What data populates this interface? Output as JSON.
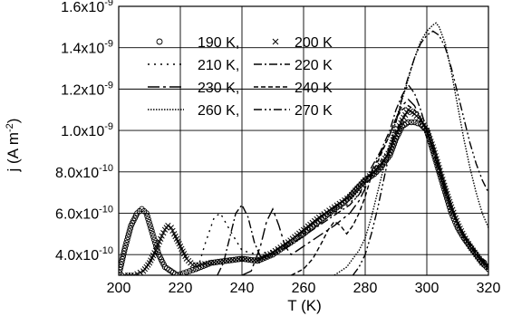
{
  "chart_data": {
    "type": "line",
    "xlabel": "T (K)",
    "ylabel": "j (A m",
    "ylabel_exponent": "-2",
    "ylabel_close": ")",
    "xlim": [
      200,
      320
    ],
    "ylim": [
      3e-10,
      1.6e-09
    ],
    "grid": true,
    "legend_placement": "top-left",
    "x_ticks": [
      200,
      220,
      240,
      260,
      280,
      300,
      320
    ],
    "x_tick_labels": [
      "200",
      "220",
      "240",
      "260",
      "280",
      "300",
      "320"
    ],
    "y_ticks": [
      {
        "value": 4e-10,
        "mantissa": "4.0x10",
        "exponent": "-10"
      },
      {
        "value": 6e-10,
        "mantissa": "6.0x10",
        "exponent": "-10"
      },
      {
        "value": 8e-10,
        "mantissa": "8.0x10",
        "exponent": "-10"
      },
      {
        "value": 1e-09,
        "mantissa": "1.0x10",
        "exponent": "-9"
      },
      {
        "value": 1.2e-09,
        "mantissa": "1.2x10",
        "exponent": "-9"
      },
      {
        "value": 1.4e-09,
        "mantissa": "1.4x10",
        "exponent": "-9"
      },
      {
        "value": 1.6e-09,
        "mantissa": "1.6x10",
        "exponent": "-9"
      }
    ],
    "series": [
      {
        "name": "190 K,",
        "style": "circle",
        "x": [
          200,
          202,
          204,
          206,
          207.5,
          209,
          211,
          213,
          215,
          217,
          219,
          221,
          225,
          230,
          235,
          240,
          245,
          250,
          255,
          260,
          265,
          270,
          273,
          275,
          278,
          280,
          283,
          285,
          288,
          290,
          292,
          294,
          296,
          298,
          300,
          302,
          304,
          306,
          308,
          310,
          312,
          314,
          316,
          318,
          320
        ],
        "y": [
          3e-10,
          4.3e-10,
          5.4e-10,
          6e-10,
          6.2e-10,
          6e-10,
          5e-10,
          4e-10,
          3.4e-10,
          3.2e-10,
          3e-10,
          3.1e-10,
          3.3e-10,
          3.6e-10,
          3.7e-10,
          3.8e-10,
          3.7e-10,
          4e-10,
          4.5e-10,
          5e-10,
          5.6e-10,
          6.2e-10,
          6.5e-10,
          6.8e-10,
          7.3e-10,
          7.6e-10,
          7.9e-10,
          8.2e-10,
          8.8e-10,
          9.6e-10,
          1.02e-09,
          1.04e-09,
          1.04e-09,
          1.03e-09,
          1e-09,
          9e-10,
          8e-10,
          7e-10,
          6e-10,
          5.3e-10,
          4.8e-10,
          4.4e-10,
          4e-10,
          3.6e-10,
          3.3e-10
        ]
      },
      {
        "name": "200 K",
        "style": "cross",
        "x": [
          202,
          205,
          208,
          210,
          212,
          214,
          215,
          216,
          217,
          218,
          220,
          222,
          224,
          226,
          230,
          235,
          240,
          245,
          250,
          255,
          260,
          265,
          270,
          275,
          280,
          285,
          288,
          290,
          292,
          294,
          296,
          298,
          300,
          302,
          304,
          306,
          308,
          310,
          312,
          314,
          316,
          318,
          320
        ],
        "y": [
          3e-10,
          3e-10,
          3.2e-10,
          3.6e-10,
          4.2e-10,
          4.9e-10,
          5.2e-10,
          5.4e-10,
          5.3e-10,
          5e-10,
          4.4e-10,
          3.8e-10,
          3.5e-10,
          3.5e-10,
          3.6e-10,
          3.7e-10,
          3.8e-10,
          3.7e-10,
          4.1e-10,
          4.6e-10,
          5.2e-10,
          5.8e-10,
          6.3e-10,
          6.8e-10,
          7.6e-10,
          8.3e-10,
          9e-10,
          9.8e-10,
          1.05e-09,
          1.1e-09,
          1.08e-09,
          1.05e-09,
          1e-09,
          9.2e-10,
          8.2e-10,
          7.2e-10,
          6.3e-10,
          5.5e-10,
          4.9e-10,
          4.4e-10,
          4e-10,
          3.6e-10,
          3.4e-10
        ]
      },
      {
        "name": "210 K,",
        "style": "dot",
        "x": [
          222,
          226,
          228,
          231,
          233,
          236,
          240,
          245,
          250,
          255,
          260,
          265,
          270,
          275,
          278,
          280,
          282,
          285,
          288,
          290,
          292,
          294,
          296,
          298,
          300,
          302,
          304,
          306,
          308,
          310,
          312,
          314,
          316,
          318,
          320
        ],
        "y": [
          3e-10,
          3.5e-10,
          4.5e-10,
          5.8e-10,
          6e-10,
          5.2e-10,
          4.2e-10,
          4e-10,
          4.2e-10,
          4.6e-10,
          5e-10,
          5.5e-10,
          6e-10,
          6.5e-10,
          6.9e-10,
          7.3e-10,
          7.8e-10,
          8.5e-10,
          9.2e-10,
          1e-09,
          1.06e-09,
          1.1e-09,
          1.08e-09,
          1.05e-09,
          1e-09,
          9.2e-10,
          8.2e-10,
          7.2e-10,
          6.2e-10,
          5.5e-10,
          4.9e-10,
          4.4e-10,
          4e-10,
          3.7e-10,
          3.5e-10
        ]
      },
      {
        "name": "220 K",
        "style": "dashdot",
        "x": [
          232,
          234,
          236,
          238,
          240,
          242,
          244,
          246,
          250,
          255,
          260,
          265,
          270,
          275,
          278,
          280,
          282,
          285,
          288,
          290,
          292,
          294,
          296,
          298,
          300,
          302,
          304,
          306,
          308,
          310,
          312,
          314,
          316,
          318,
          320
        ],
        "y": [
          3e-10,
          3.6e-10,
          4.8e-10,
          6e-10,
          6.4e-10,
          5.8e-10,
          4.6e-10,
          3.9e-10,
          4e-10,
          4.4e-10,
          4.9e-10,
          5.4e-10,
          5.9e-10,
          6.4e-10,
          6.9e-10,
          7.5e-10,
          8.2e-10,
          9e-10,
          1e-09,
          1.1e-09,
          1.17e-09,
          1.22e-09,
          1.18e-09,
          1.1e-09,
          1e-09,
          9e-10,
          8e-10,
          7e-10,
          6.2e-10,
          5.5e-10,
          4.9e-10,
          4.4e-10,
          4e-10,
          3.7e-10,
          3.5e-10
        ]
      },
      {
        "name": "230 K,",
        "style": "longdashdot",
        "x": [
          240,
          243,
          246,
          248,
          250,
          252,
          254,
          256,
          260,
          265,
          270,
          275,
          278,
          280,
          282,
          285,
          288,
          290,
          292,
          294,
          296,
          298,
          300,
          302,
          304,
          306,
          308,
          310,
          312,
          314,
          316,
          318,
          320
        ],
        "y": [
          3e-10,
          3.2e-10,
          4.4e-10,
          5.6e-10,
          6.2e-10,
          5.4e-10,
          4.4e-10,
          4e-10,
          4.4e-10,
          4.9e-10,
          5.4e-10,
          6e-10,
          6.6e-10,
          7.2e-10,
          8e-10,
          8.9e-10,
          9.8e-10,
          1.06e-09,
          1.12e-09,
          1.15e-09,
          1.12e-09,
          1.06e-09,
          1e-09,
          9e-10,
          8e-10,
          7e-10,
          6.2e-10,
          5.5e-10,
          4.9e-10,
          4.4e-10,
          4e-10,
          3.7e-10,
          3.5e-10
        ]
      },
      {
        "name": "240 K",
        "style": "dash",
        "x": [
          256,
          260,
          263,
          266,
          268,
          270,
          272,
          274,
          276,
          278,
          280,
          282,
          285,
          288,
          290,
          292,
          294,
          296,
          298,
          300,
          302,
          304,
          306,
          308,
          310,
          312,
          314,
          316,
          318,
          320
        ],
        "y": [
          3e-10,
          3.3e-10,
          3.8e-10,
          4.6e-10,
          5.2e-10,
          5.6e-10,
          5.4e-10,
          5e-10,
          5.4e-10,
          6e-10,
          6.8e-10,
          7.8e-10,
          8.8e-10,
          9.8e-10,
          1.06e-09,
          1.1e-09,
          1.12e-09,
          1.1e-09,
          1.06e-09,
          1e-09,
          9.2e-10,
          8.2e-10,
          7.2e-10,
          6.3e-10,
          5.6e-10,
          5e-10,
          4.5e-10,
          4.1e-10,
          3.8e-10,
          3.6e-10
        ]
      },
      {
        "name": "260 K,",
        "style": "densedot",
        "x": [
          270,
          274,
          276,
          278,
          280,
          282,
          284,
          286,
          288,
          290,
          292,
          294,
          296,
          298,
          300,
          302,
          303,
          304,
          306,
          308,
          310,
          312,
          314,
          316,
          318,
          320
        ],
        "y": [
          3e-10,
          3.4e-10,
          3.8e-10,
          4.2e-10,
          4.8e-10,
          5.8e-10,
          7e-10,
          8.2e-10,
          9.4e-10,
          1.05e-09,
          1.15e-09,
          1.25e-09,
          1.35e-09,
          1.43e-09,
          1.48e-09,
          1.51e-09,
          1.52e-09,
          1.5e-09,
          1.42e-09,
          1.28e-09,
          1.12e-09,
          9.6e-10,
          8.2e-10,
          7e-10,
          6e-10,
          5.3e-10
        ]
      },
      {
        "name": "270 K",
        "style": "dashdotdot",
        "x": [
          276,
          278,
          280,
          282,
          284,
          286,
          288,
          290,
          292,
          294,
          296,
          298,
          300,
          302,
          304,
          306,
          308,
          310,
          312,
          314,
          316,
          318,
          320
        ],
        "y": [
          3e-10,
          3.4e-10,
          4e-10,
          5e-10,
          6.2e-10,
          7.6e-10,
          9e-10,
          1.04e-09,
          1.16e-09,
          1.26e-09,
          1.35e-09,
          1.42e-09,
          1.46e-09,
          1.48e-09,
          1.46e-09,
          1.4e-09,
          1.3e-09,
          1.18e-09,
          1.06e-09,
          9.4e-10,
          8.4e-10,
          7.6e-10,
          7e-10
        ]
      }
    ]
  }
}
